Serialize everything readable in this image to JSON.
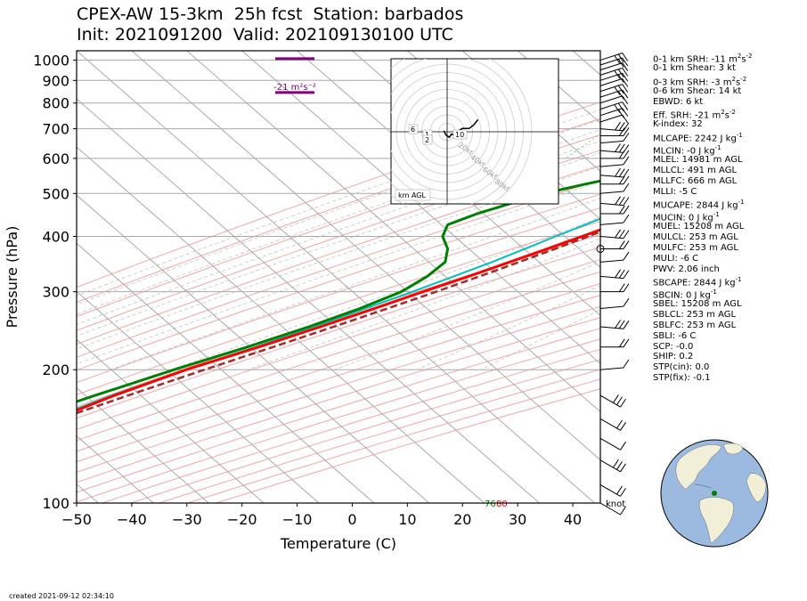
{
  "header": {
    "title_line1": "CPEX-AW 15-3km  25h fcst  Station: barbados",
    "title_line2": "Init: 2021091200  Valid: 202109130100 UTC"
  },
  "footer": {
    "created": "created 2021-09-12 02:34:10"
  },
  "colors": {
    "temperature": "#ff0000",
    "dewpoint": "#008000",
    "wetbulb": "#00bfbf",
    "parcel": "#a52a2a",
    "srh_marker": "#800080",
    "dry_adiabat": "#f4a6a6",
    "moist_adiabat": "#dddddd",
    "mixing_ratio": "#7fcf7f",
    "isobar": "#aaaaaa",
    "isotherm": "#aaaaaa"
  },
  "indices": [
    {
      "text": "0-1 km SRH: -11 m",
      "sup": "2",
      "text2": "s",
      "sup2": "-2"
    },
    {
      "text": "0-1 km Shear: 3 kt"
    },
    {
      "text": "0-3 km SRH: -3 m",
      "sup": "2",
      "text2": "s",
      "sup2": "-2"
    },
    {
      "text": "0-6 km Shear: 14 kt"
    },
    {
      "text": "EBWD: 6 kt"
    },
    {
      "text": "Eff. SRH: -21 m",
      "sup": "2",
      "text2": "s",
      "sup2": "-2"
    },
    {
      "text": "K-index: 32"
    },
    {
      "text": "MLCAPE: 2242 J kg",
      "sup": "-1"
    },
    {
      "text": "MLCIN: -0 J kg",
      "sup": "-1"
    },
    {
      "text": "MLEL: 14981 m AGL"
    },
    {
      "text": "MLLCL: 491 m AGL"
    },
    {
      "text": "MLLFC: 666 m AGL"
    },
    {
      "text": "MLLI: -5 C"
    },
    {
      "text": "MUCAPE: 2844 J kg",
      "sup": "-1"
    },
    {
      "text": "MUCIN: 0 J kg",
      "sup": "-1"
    },
    {
      "text": "MUEL: 15208 m AGL"
    },
    {
      "text": "MULCL: 253 m AGL"
    },
    {
      "text": "MULFC: 253 m AGL"
    },
    {
      "text": "MULI: -6 C"
    },
    {
      "text": "PWV: 2.06 inch"
    },
    {
      "text": "SBCAPE: 2844 J kg",
      "sup": "-1"
    },
    {
      "text": "SBCIN: 0 J kg",
      "sup": "-1"
    },
    {
      "text": "SBEL: 15208 m AGL"
    },
    {
      "text": "SBLCL: 253 m AGL"
    },
    {
      "text": "SBLFC: 253 m AGL"
    },
    {
      "text": "SBLI: -6 C"
    },
    {
      "text": "SCP: -0.0"
    },
    {
      "text": "SHIP: 0.2"
    },
    {
      "text": "STP(cin): 0.0"
    },
    {
      "text": "STP(fix): -0.1"
    }
  ],
  "chart_data": [
    {
      "type": "line",
      "subtype": "skew-t log-p",
      "xlabel": "Temperature (C)",
      "ylabel": "Pressure (hPa)",
      "xlim": [
        -50,
        45
      ],
      "ylim": [
        1050,
        100
      ],
      "y_scale": "log",
      "x_ticks": [
        -50,
        -40,
        -30,
        -20,
        -10,
        0,
        10,
        20,
        30,
        40
      ],
      "x_tick_labels": [
        "−50",
        "−40",
        "−30",
        "−20",
        "−10",
        "0",
        "10",
        "20",
        "30",
        "40"
      ],
      "y_ticks": [
        1000,
        900,
        800,
        700,
        600,
        500,
        400,
        300,
        200,
        100
      ],
      "y_tick_labels": [
        "1000",
        "900",
        "800",
        "700",
        "600",
        "500",
        "400",
        "300",
        "200",
        "100"
      ],
      "wind_unit_label": "knot",
      "surface_labels": {
        "dewpoint": "76",
        "temperature": "80"
      },
      "srh_label": "-21 m²s⁻²",
      "srh_layer_hPa": [
        1008,
        845
      ],
      "series": [
        {
          "name": "temperature",
          "p": [
            1005,
            1000,
            975,
            950,
            925,
            900,
            875,
            850,
            825,
            800,
            775,
            760,
            750,
            725,
            700,
            675,
            650,
            625,
            600,
            575,
            550,
            525,
            500,
            475,
            450,
            425,
            400,
            375,
            350,
            325,
            300,
            275,
            250,
            225,
            200,
            175,
            150,
            125,
            100
          ],
          "t": [
            26.6,
            26.1,
            24.8,
            23.8,
            22.4,
            21.1,
            19.7,
            18.2,
            16.8,
            15.0,
            13.6,
            13.2,
            12.9,
            12.4,
            11.6,
            10.3,
            8.6,
            6.7,
            5.4,
            4.3,
            2.6,
            0.3,
            -2.0,
            -4.5,
            -7.3,
            -10.3,
            -13.7,
            -17.4,
            -21.5,
            -26.0,
            -31.1,
            -36.4,
            -42.4,
            -49.4,
            -57.8,
            -65.5,
            -73.0,
            -79.6,
            -79.0
          ]
        },
        {
          "name": "wetbulb",
          "p": [
            1005,
            1000,
            975,
            950,
            925,
            900,
            875,
            850,
            825,
            800,
            775,
            750,
            725,
            700,
            675,
            650,
            625,
            600,
            575,
            550,
            525,
            500,
            475,
            450,
            425,
            400,
            375,
            350,
            325,
            300,
            275,
            250,
            225,
            200,
            175,
            150,
            125,
            100
          ],
          "t": [
            25.0,
            24.7,
            23.3,
            22.1,
            20.4,
            18.8,
            17.2,
            15.8,
            14.5,
            13.2,
            11.6,
            10.0,
            8.4,
            6.9,
            5.4,
            4.0,
            2.8,
            1.2,
            -0.5,
            -2.5,
            -4.9,
            -7.4,
            -10.0,
            -12.8,
            -15.6,
            -18.5,
            -21.5,
            -24.7,
            -28.7,
            -33.0,
            -38.0,
            -43.5,
            -50.0,
            -58.0,
            -66.0,
            -74.0,
            -81.0,
            -80.0
          ]
        },
        {
          "name": "dewpoint",
          "p": [
            1005,
            1000,
            975,
            950,
            925,
            900,
            875,
            850,
            825,
            800,
            775,
            750,
            725,
            700,
            675,
            650,
            625,
            600,
            575,
            550,
            525,
            500,
            475,
            450,
            425,
            400,
            375,
            350,
            325,
            300,
            275,
            250,
            225,
            200,
            175,
            150,
            125,
            100
          ],
          "t": [
            24.5,
            24.2,
            22.8,
            21.5,
            19.5,
            17.6,
            16.0,
            14.8,
            13.9,
            12.0,
            9.5,
            6.4,
            2.8,
            -0.4,
            -3.4,
            -5.8,
            -8.0,
            -10.2,
            -13.5,
            -18.0,
            -24.0,
            -29.5,
            -33.5,
            -37.5,
            -40.5,
            -39.0,
            -35.5,
            -33.2,
            -33.5,
            -35.0,
            -39.0,
            -44.5,
            -51.5,
            -60.0,
            -69.0,
            -79.0,
            -88.0,
            -88.0
          ]
        },
        {
          "name": "parcel",
          "p": [
            1005,
            975,
            950,
            925,
            900,
            875,
            850,
            825,
            800,
            775,
            750,
            725,
            700,
            675,
            650,
            625,
            600,
            575,
            550,
            525,
            500,
            475,
            450,
            425,
            400,
            375,
            350,
            325,
            300,
            275,
            250,
            225,
            200,
            175,
            150,
            125,
            100
          ],
          "t": [
            29.5,
            25.8,
            24.6,
            23.4,
            22.2,
            21.0,
            19.7,
            18.4,
            17.1,
            15.8,
            14.5,
            13.2,
            11.8,
            10.4,
            9.0,
            7.5,
            5.9,
            4.2,
            2.4,
            0.4,
            -1.8,
            -4.1,
            -6.7,
            -9.5,
            -12.6,
            -16.0,
            -19.8,
            -24.0,
            -28.7,
            -34.0,
            -40.0,
            -46.8,
            -54.5,
            -63.0,
            -72.5,
            -83.0,
            -94.0
          ]
        }
      ],
      "wind_barbs_hPa": [
        100,
        110,
        125,
        140,
        155,
        175,
        200,
        225,
        250,
        275,
        300,
        325,
        350,
        375,
        400,
        425,
        450,
        475,
        500,
        525,
        550,
        575,
        600,
        625,
        650,
        675,
        700,
        725,
        750,
        775,
        800,
        825,
        850,
        875,
        900,
        925,
        950,
        975,
        1000
      ]
    },
    {
      "type": "line",
      "subtype": "hodograph",
      "ring_labels": [
        "20kt",
        "40kt",
        "60kt",
        "80kt"
      ],
      "height_label_box": "km AGL",
      "height_labels": [
        "6",
        "1",
        "2",
        "10"
      ],
      "u": [
        -3,
        -1,
        2,
        4,
        6,
        8,
        10,
        14,
        20,
        24,
        28
      ],
      "v": [
        1,
        -3,
        -5,
        -2,
        -3,
        0,
        1,
        3,
        3,
        6,
        11
      ]
    }
  ],
  "globe": {
    "marker_color": "#008000",
    "ocean_color": "#9cb9e0",
    "land_color": "#f2efd9"
  }
}
